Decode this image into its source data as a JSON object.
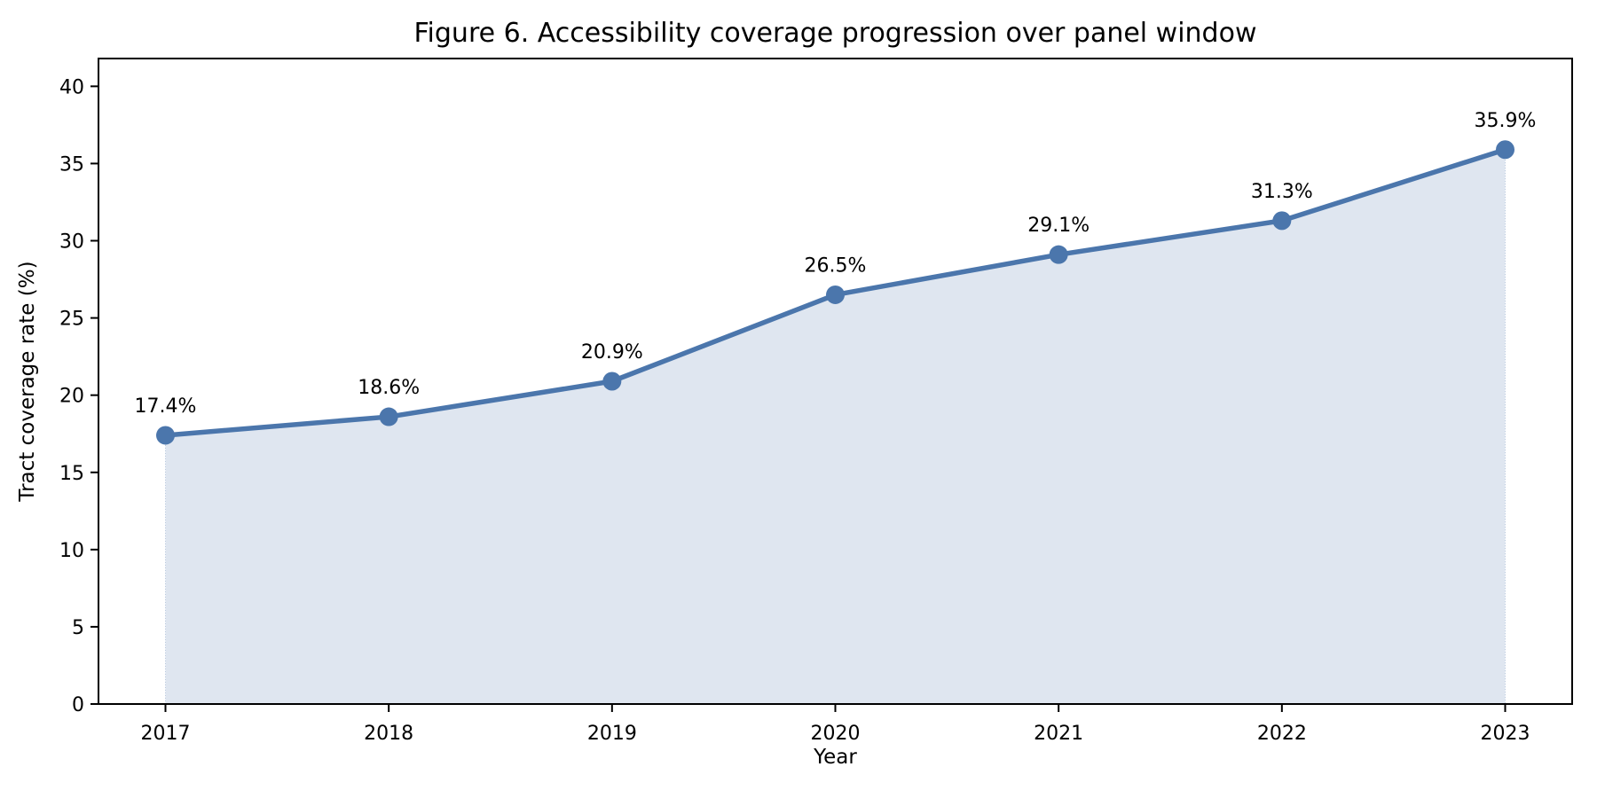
{
  "chart_data": {
    "type": "area",
    "title": "Figure 6. Accessibility coverage progression over panel window",
    "xlabel": "Year",
    "ylabel": "Tract coverage rate (%)",
    "categories": [
      "2017",
      "2018",
      "2019",
      "2020",
      "2021",
      "2022",
      "2023"
    ],
    "series": [
      {
        "name": "Tract coverage rate",
        "values": [
          17.4,
          18.6,
          20.9,
          26.5,
          29.1,
          31.3,
          35.9
        ],
        "point_labels": [
          "17.4%",
          "18.6%",
          "20.9%",
          "26.5%",
          "29.1%",
          "31.3%",
          "35.9%"
        ]
      }
    ],
    "yticks": [
      0,
      5,
      10,
      15,
      20,
      25,
      30,
      35,
      40
    ],
    "ylim": [
      0,
      41.8
    ],
    "grid": false,
    "legend_position": "none",
    "colors": {
      "line": "#4B76AC",
      "marker": "#4B76AC",
      "fill": "rgba(75,118,172,0.18)",
      "fill_edge": "rgba(75,118,172,0.35)",
      "axis": "#000000",
      "text": "#000000"
    }
  }
}
